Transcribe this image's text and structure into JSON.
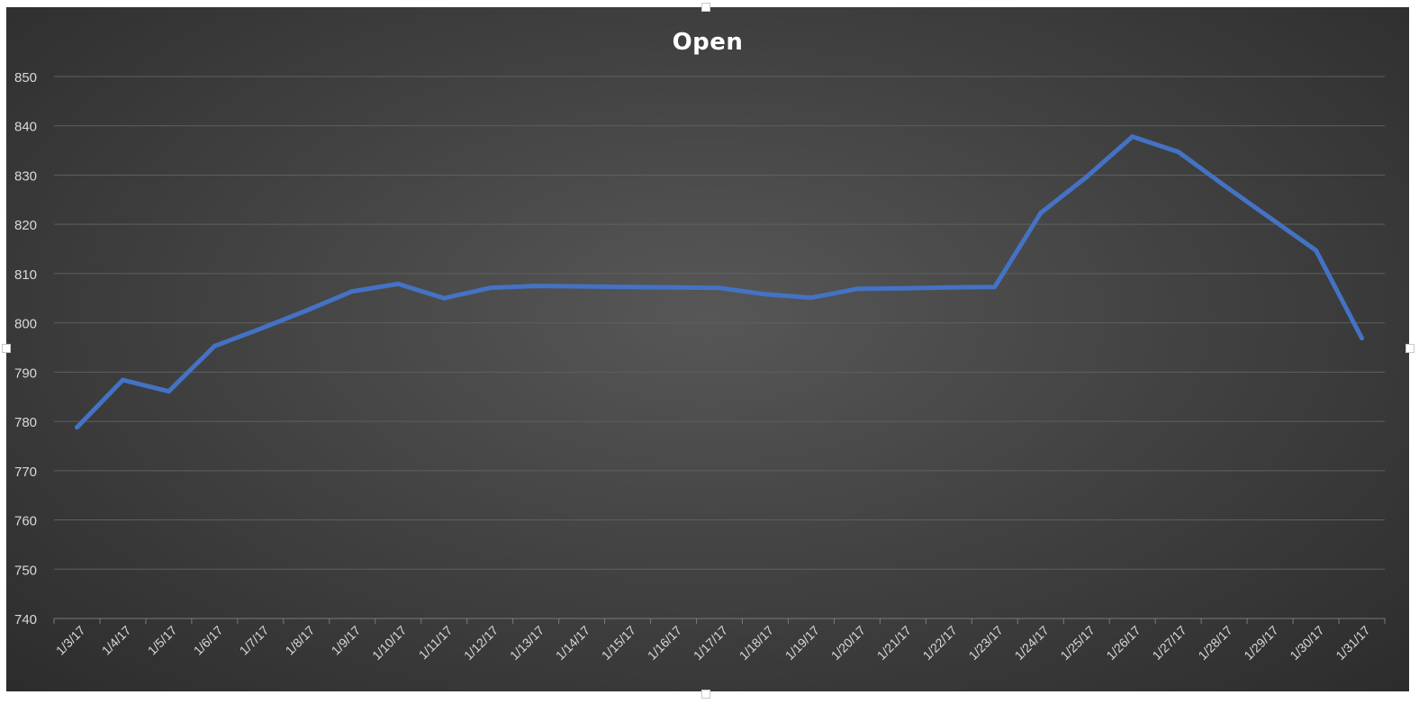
{
  "chart_data": {
    "type": "line",
    "title": "Open",
    "xlabel": "",
    "ylabel": "",
    "categories": [
      "1/3/17",
      "1/4/17",
      "1/5/17",
      "1/6/17",
      "1/7/17",
      "1/8/17",
      "1/9/17",
      "1/10/17",
      "1/11/17",
      "1/12/17",
      "1/13/17",
      "1/14/17",
      "1/15/17",
      "1/16/17",
      "1/17/17",
      "1/18/17",
      "1/19/17",
      "1/20/17",
      "1/21/17",
      "1/22/17",
      "1/23/17",
      "1/24/17",
      "1/25/17",
      "1/26/17",
      "1/27/17",
      "1/28/17",
      "1/29/17",
      "1/30/17",
      "1/31/17"
    ],
    "series": [
      {
        "values": [
          778.8,
          788.4,
          786.1,
          795.3,
          798.8,
          802.5,
          806.4,
          807.9,
          805.0,
          807.1,
          807.5,
          807.4,
          807.3,
          807.2,
          807.1,
          805.8,
          805.1,
          806.9,
          807.0,
          807.2,
          807.3,
          822.3,
          829.6,
          837.8,
          834.7,
          827.9,
          821.3,
          814.7,
          796.9
        ],
        "color": "#4472c4"
      }
    ],
    "ylim": [
      740,
      850
    ],
    "yticks": [
      740,
      750,
      760,
      770,
      780,
      790,
      800,
      810,
      820,
      830,
      840,
      850
    ],
    "grid": true,
    "legend": "none",
    "colors": {
      "background": "#444444",
      "gridline": "#5f5f5f",
      "axis_text": "#d9d9d9",
      "title": "#ffffff"
    }
  }
}
